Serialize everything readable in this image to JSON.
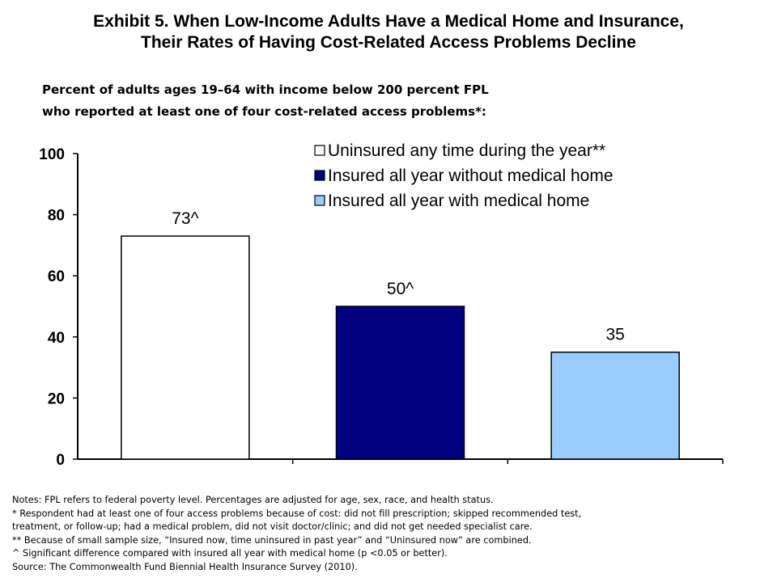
{
  "title_lines": [
    "Exhibit 5. When Low-Income Adults Have a Medical Home and Insurance,",
    "Their Rates of Having Cost-Related Access Problems Decline"
  ],
  "subtitle_lines": [
    "Percent of adults ages 19–64 with income below 200 percent FPL",
    "who reported at least one of four cost-related access problems*:"
  ],
  "chart_data": {
    "type": "bar",
    "categories": [
      "Uninsured any time during the year**",
      "Insured all year without medical home",
      "Insured all year with medical home"
    ],
    "values": [
      73,
      50,
      35
    ],
    "data_labels": [
      "73^",
      "50^",
      "35"
    ],
    "colors": [
      "#ffffff",
      "#000080",
      "#99ccff"
    ],
    "ylim": [
      0,
      100
    ],
    "yticks": [
      0,
      20,
      40,
      60,
      80,
      100
    ],
    "grid": false,
    "legend_position": "top-right",
    "xlabel": "",
    "ylabel": ""
  },
  "notes": [
    "Notes: FPL refers to federal poverty level. Percentages are adjusted for age, sex, race, and health status.",
    "* Respondent had at least one of four access problems because of cost: did not fill prescription; skipped recommended test,",
    "treatment, or follow-up; had a medical problem, did not visit doctor/clinic; and did not get needed specialist care.",
    "** Because of small sample size, “Insured now, time uninsured in past year” and “Uninsured now” are combined.",
    "^ Significant difference compared with insured all year with medical home (p <0.05 or better).",
    "Source: The Commonwealth Fund Biennial Health Insurance Survey (2010)."
  ]
}
